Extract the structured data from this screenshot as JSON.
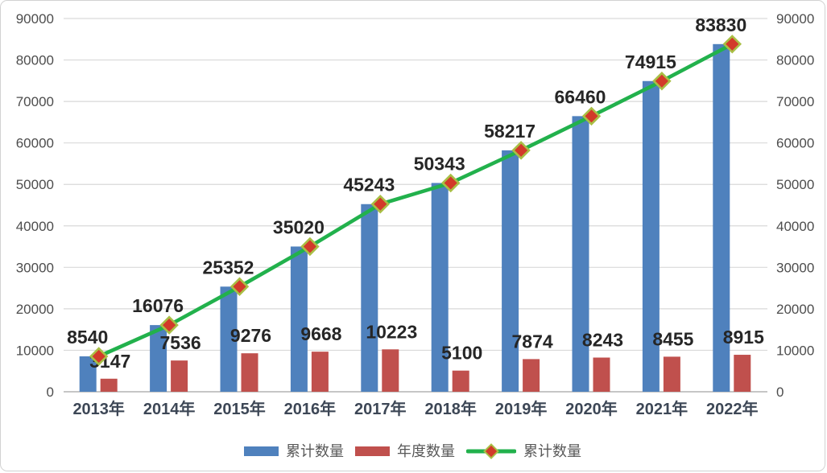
{
  "chart_data": {
    "type": "bar+line",
    "categories": [
      "2013年",
      "2014年",
      "2015年",
      "2016年",
      "2017年",
      "2018年",
      "2019年",
      "2020年",
      "2021年",
      "2022年"
    ],
    "series": [
      {
        "name": "累计数量",
        "type": "bar",
        "color": "#4f81bd",
        "values": [
          8540,
          16076,
          25352,
          35020,
          45243,
          50343,
          58217,
          66460,
          74915,
          83830
        ]
      },
      {
        "name": "年度数量",
        "type": "bar",
        "color": "#c0504d",
        "values": [
          3147,
          7536,
          9276,
          9668,
          10223,
          5100,
          7874,
          8243,
          8455,
          8915
        ]
      },
      {
        "name": "累计数量",
        "type": "line",
        "color": "#22b14c",
        "marker": "diamond",
        "marker_fill": "#d23a2a",
        "marker_border": "#a9bf45",
        "values": [
          8540,
          16076,
          25352,
          35020,
          45243,
          50343,
          58217,
          66460,
          74915,
          83830
        ]
      }
    ],
    "title": "",
    "xlabel": "",
    "ylabel": "",
    "ylim": [
      0,
      90000
    ],
    "ytick_step": 10000,
    "yticks": [
      0,
      10000,
      20000,
      30000,
      40000,
      50000,
      60000,
      70000,
      80000,
      90000
    ],
    "y_axis_left": true,
    "y_axis_right": true,
    "grid": true,
    "grid_color": "#d9d9d9",
    "axis_line_color": "#b3b3b3",
    "data_labels": true,
    "legend_position": "bottom"
  }
}
